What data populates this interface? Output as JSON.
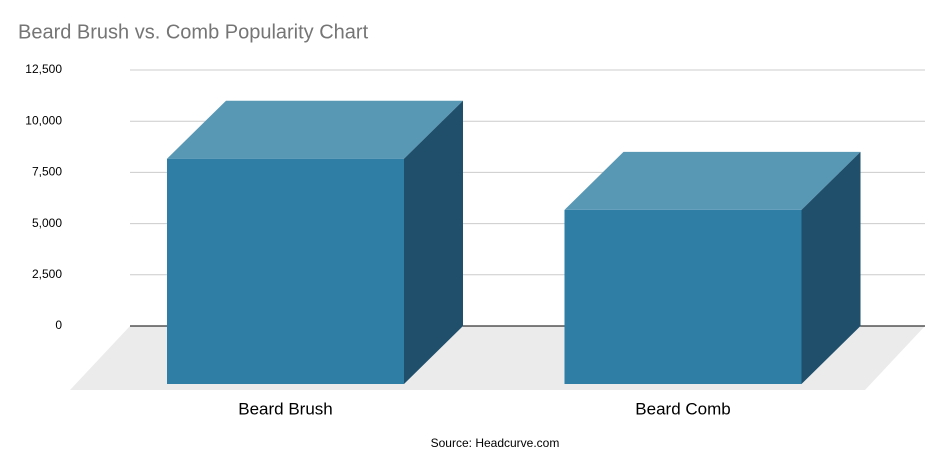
{
  "chart_data": {
    "type": "bar3d",
    "title": "Beard Brush vs. Comb Popularity Chart",
    "categories": [
      "Beard Brush",
      "Beard Comb"
    ],
    "values": [
      11000,
      8500
    ],
    "colors": {
      "front": "#2e7ea6",
      "top": "#5898b5",
      "side": "#1f4f6b"
    },
    "ylim": [
      0,
      12500
    ],
    "yticks": [
      0,
      {
        "value": 2500,
        "label": "2,500"
      },
      {
        "value": 5000,
        "label": "5,000"
      },
      {
        "value": 7500,
        "label": "7,500"
      },
      {
        "value": 10000,
        "label": "10,000"
      },
      {
        "value": 12500,
        "label": "12,500"
      }
    ],
    "grid": true,
    "source": "Source: Headcurve.com"
  }
}
